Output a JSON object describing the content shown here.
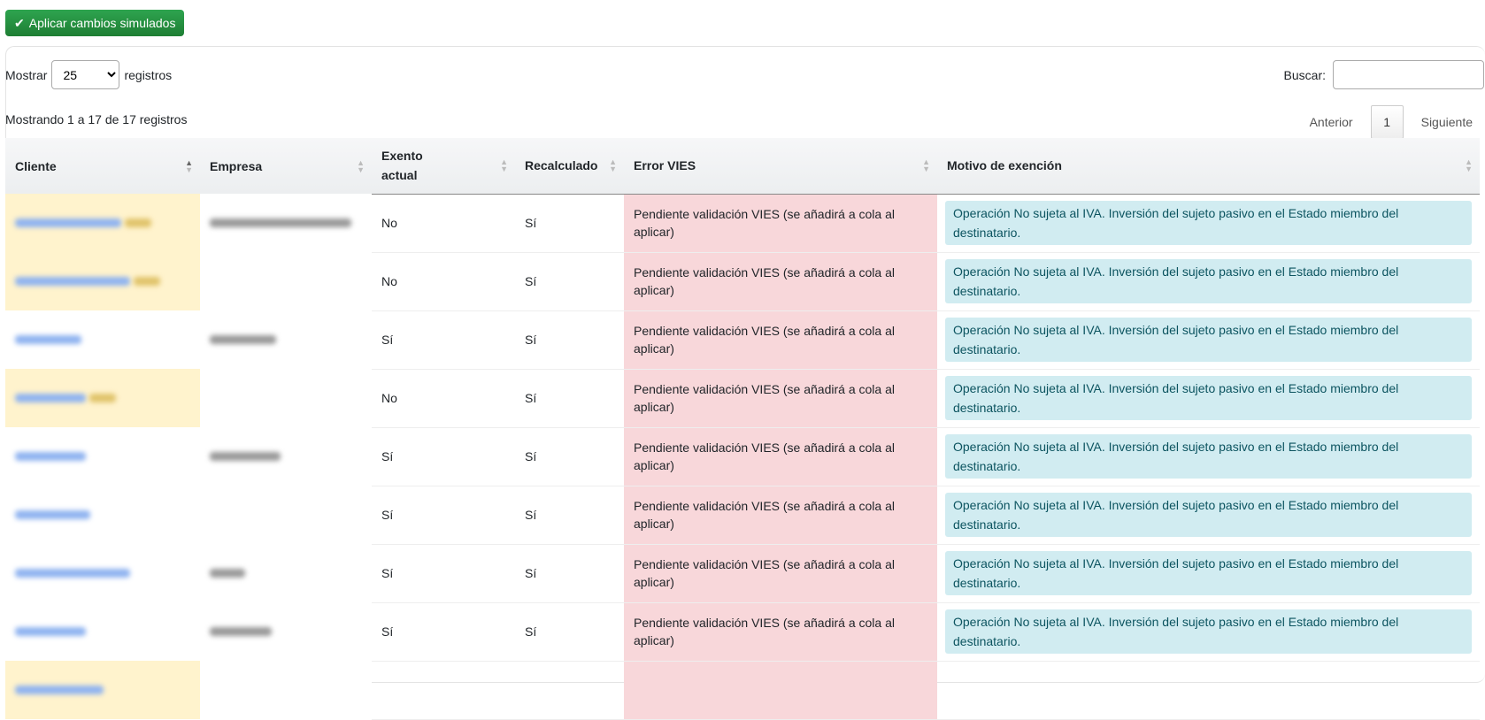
{
  "toolbar": {
    "apply_label": "Aplicar cambios simulados",
    "apply_color": "#28a745"
  },
  "length": {
    "prefix": "Mostrar",
    "value": "25",
    "suffix": "registros"
  },
  "search": {
    "label": "Buscar:",
    "value": ""
  },
  "info": "Mostrando 1 a 17 de 17 registros",
  "pagination": {
    "prev": "Anterior",
    "current": "1",
    "next": "Siguiente"
  },
  "columns": [
    "Cliente",
    "Empresa",
    "Exento actual",
    "Recalculado",
    "Error VIES",
    "Motivo de exención"
  ],
  "rows": [
    {
      "exento": "No",
      "recalculado": "Sí",
      "error": "Pendiente validación VIES (se añadirá a cola al aplicar)",
      "motivo": "Operación No sujeta al IVA. Inversión del sujeto pasivo en el Estado miembro del destinatario."
    },
    {
      "exento": "No",
      "recalculado": "Sí",
      "error": "Pendiente validación VIES (se añadirá a cola al aplicar)",
      "motivo": "Operación No sujeta al IVA. Inversión del sujeto pasivo en el Estado miembro del destinatario."
    },
    {
      "exento": "Sí",
      "recalculado": "Sí",
      "error": "Pendiente validación VIES (se añadirá a cola al aplicar)",
      "motivo": "Operación No sujeta al IVA. Inversión del sujeto pasivo en el Estado miembro del destinatario."
    },
    {
      "exento": "No",
      "recalculado": "Sí",
      "error": "Pendiente validación VIES (se añadirá a cola al aplicar)",
      "motivo": "Operación No sujeta al IVA. Inversión del sujeto pasivo en el Estado miembro del destinatario."
    },
    {
      "exento": "Sí",
      "recalculado": "Sí",
      "error": "Pendiente validación VIES (se añadirá a cola al aplicar)",
      "motivo": "Operación No sujeta al IVA. Inversión del sujeto pasivo en el Estado miembro del destinatario."
    },
    {
      "exento": "Sí",
      "recalculado": "Sí",
      "error": "Pendiente validación VIES (se añadirá a cola al aplicar)",
      "motivo": "Operación No sujeta al IVA. Inversión del sujeto pasivo en el Estado miembro del destinatario."
    },
    {
      "exento": "Sí",
      "recalculado": "Sí",
      "error": "Pendiente validación VIES (se añadirá a cola al aplicar)",
      "motivo": "Operación No sujeta al IVA. Inversión del sujeto pasivo en el Estado miembro del destinatario."
    },
    {
      "exento": "Sí",
      "recalculado": "Sí",
      "error": "Pendiente validación VIES (se añadirá a cola al aplicar)",
      "motivo": "Operación No sujeta al IVA. Inversión del sujeto pasivo en el Estado miembro del destinatario."
    },
    {
      "exento": "",
      "recalculado": "",
      "error": "",
      "motivo": ""
    }
  ],
  "colors": {
    "error_bg": "#f8d7da",
    "motivo_bg": "#d1ecf1",
    "motivo_text": "#0c5460",
    "highlight_bg": "#fff3cd",
    "link": "#0d6efd"
  }
}
